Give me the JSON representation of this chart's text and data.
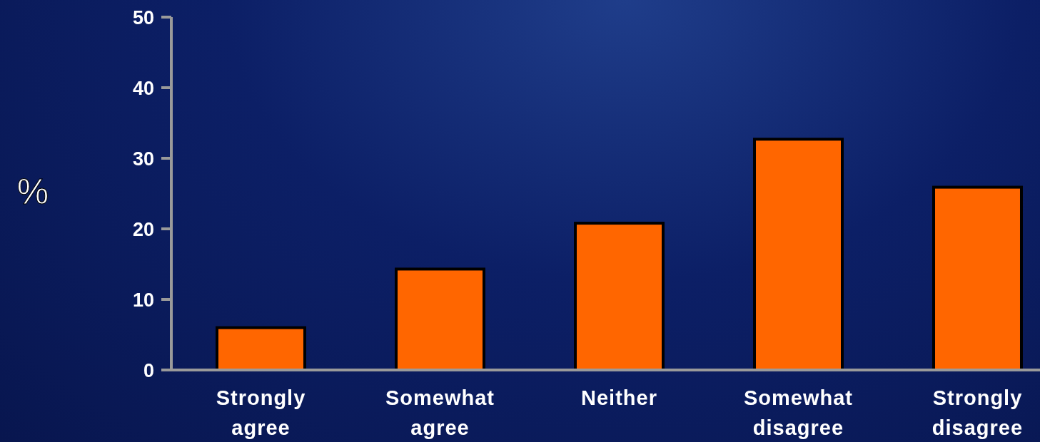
{
  "chart_data": {
    "type": "bar",
    "ylabel": "%",
    "categories": [
      "Strongly agree",
      "Somewhat agree",
      "Neither",
      "Somewhat disagree",
      "Strongly disagree"
    ],
    "values": [
      6,
      14.3,
      20.8,
      32.7,
      25.9
    ],
    "color": "#ff6600",
    "ylim": [
      0,
      50
    ],
    "yticks": [
      0,
      10,
      20,
      30,
      40,
      50
    ],
    "grid": false
  }
}
